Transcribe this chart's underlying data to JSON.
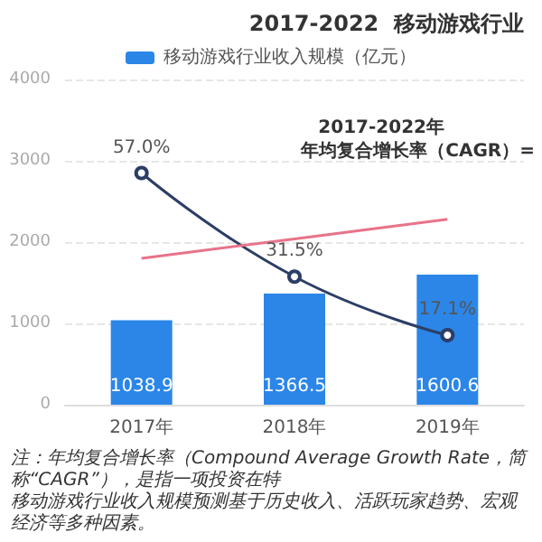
{
  "chart_data": {
    "type": "bar",
    "title": "2017-2022  移动游戏行业",
    "categories": [
      "2017年",
      "2018年",
      "2019年"
    ],
    "series": [
      {
        "name": "移动游戏行业收入规模（亿元）",
        "color": "#2b86e8",
        "values": [
          1038.9,
          1366.5,
          1600.6
        ],
        "value_labels": [
          "1038.9",
          "1366.5",
          "1600.6"
        ]
      },
      {
        "type": "line",
        "axis": "y2",
        "color": "#2c3e66",
        "values": [
          57.0,
          31.5,
          17.1
        ],
        "value_labels": [
          "57.0%",
          "31.5%",
          "17.1%"
        ]
      },
      {
        "type": "line",
        "color": "#e8738a",
        "marker": "none",
        "values": [
          1800,
          2040,
          2280
        ]
      }
    ],
    "ylim": [
      0,
      4000
    ],
    "yticks": [
      0,
      1000,
      2000,
      3000,
      4000
    ],
    "y2lim": [
      0,
      80
    ],
    "grid": "y",
    "legend": "top",
    "marker": "circle",
    "annotations": [
      "2017-2022年",
      "年均复合增长率（CAGR）=",
      "注：年均复合增长率（Compound Average Growth Rate，简称“CAGR”），是指一项投资在特",
      "移动游戏行业收入规模预测基于历史收入、活跃玩家趋势、宏观经济等多种因素。"
    ]
  }
}
